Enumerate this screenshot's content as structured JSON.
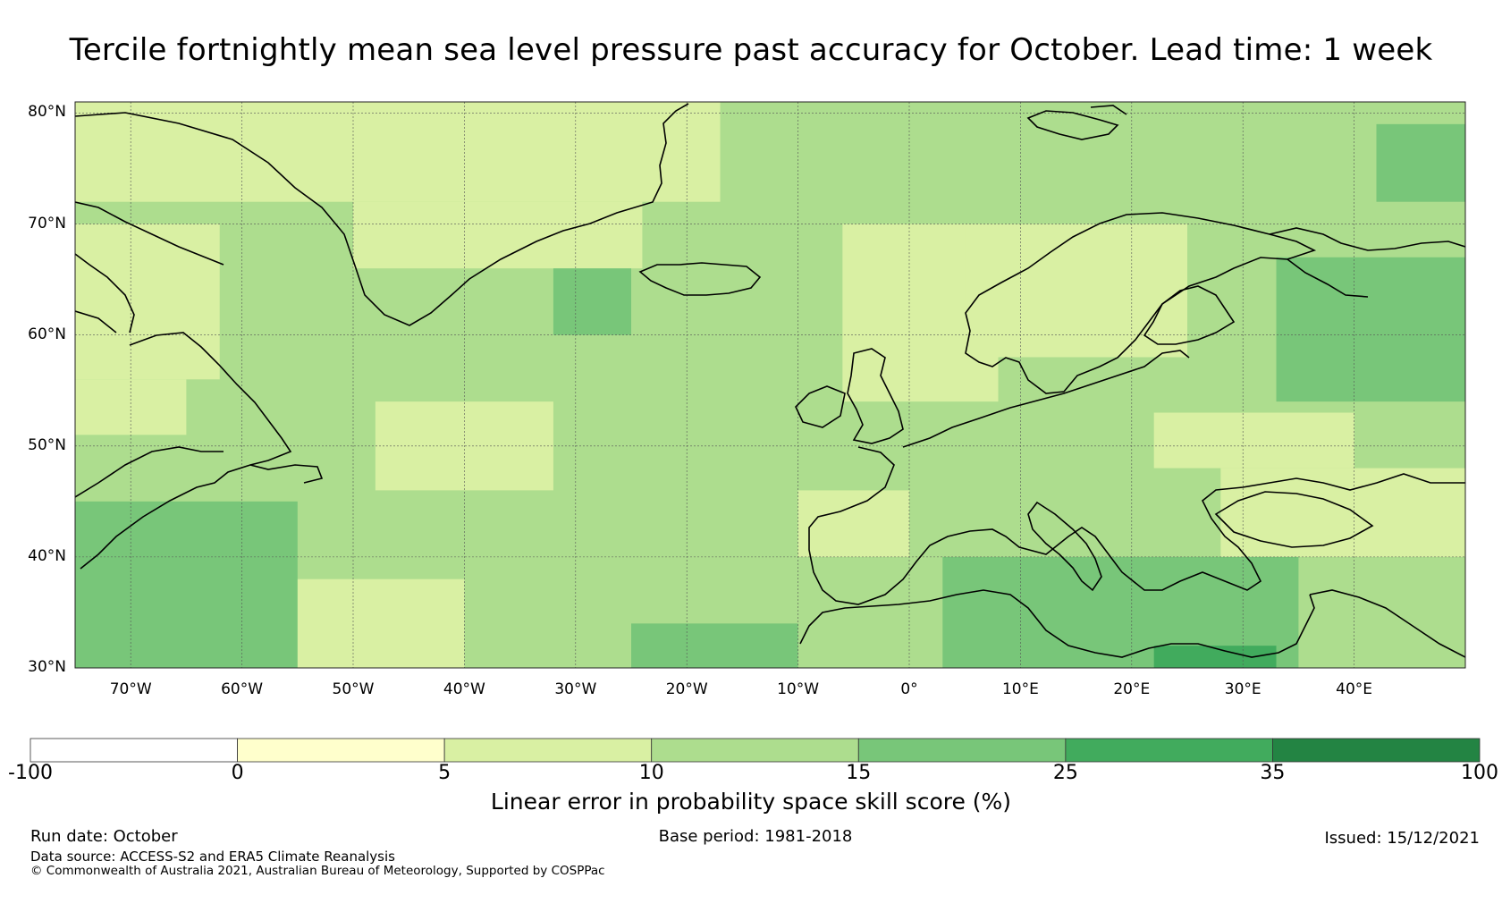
{
  "title": "Tercile fortnightly mean sea level pressure past accuracy for October. Lead time: 1 week",
  "map": {
    "lon_range": [
      -75,
      50
    ],
    "lat_range": [
      30,
      81
    ],
    "lat_ticks": [
      {
        "value": 30,
        "label": "30°N"
      },
      {
        "value": 40,
        "label": "40°N"
      },
      {
        "value": 50,
        "label": "50°N"
      },
      {
        "value": 60,
        "label": "60°N"
      },
      {
        "value": 70,
        "label": "70°N"
      },
      {
        "value": 80,
        "label": "80°N"
      }
    ],
    "lon_ticks": [
      {
        "value": -70,
        "label": "70°W"
      },
      {
        "value": -60,
        "label": "60°W"
      },
      {
        "value": -50,
        "label": "50°W"
      },
      {
        "value": -40,
        "label": "40°W"
      },
      {
        "value": -30,
        "label": "30°W"
      },
      {
        "value": -20,
        "label": "20°W"
      },
      {
        "value": -10,
        "label": "10°W"
      },
      {
        "value": 0,
        "label": "0°"
      },
      {
        "value": 10,
        "label": "10°E"
      },
      {
        "value": 20,
        "label": "20°E"
      },
      {
        "value": 30,
        "label": "30°E"
      },
      {
        "value": 40,
        "label": "40°E"
      }
    ],
    "skill_regions": [
      {
        "name": "background",
        "class": "10-15",
        "lon": [
          -75,
          50
        ],
        "lat": [
          30,
          81
        ]
      },
      {
        "name": "labrador-greenland-north",
        "class": "5-10",
        "lon": [
          -75,
          -17
        ],
        "lat": [
          72,
          81
        ]
      },
      {
        "name": "greenland-east-north",
        "class": "5-10",
        "lon": [
          -50,
          -24
        ],
        "lat": [
          66,
          72
        ]
      },
      {
        "name": "baffin-west",
        "class": "5-10",
        "lon": [
          -75,
          -62
        ],
        "lat": [
          56,
          70
        ]
      },
      {
        "name": "labrador-coast",
        "class": "5-10",
        "lon": [
          -75,
          -65
        ],
        "lat": [
          51,
          56
        ]
      },
      {
        "name": "mid-atlantic",
        "class": "5-10",
        "lon": [
          -48,
          -32
        ],
        "lat": [
          46,
          54
        ]
      },
      {
        "name": "azores",
        "class": "5-10",
        "lon": [
          -56,
          -40
        ],
        "lat": [
          30,
          38
        ]
      },
      {
        "name": "iberia-west",
        "class": "5-10",
        "lon": [
          -10,
          0
        ],
        "lat": [
          40,
          46
        ]
      },
      {
        "name": "north-sea",
        "class": "5-10",
        "lon": [
          -6,
          8
        ],
        "lat": [
          54,
          70
        ]
      },
      {
        "name": "scandinavia",
        "class": "5-10",
        "lon": [
          5,
          25
        ],
        "lat": [
          58,
          70
        ]
      },
      {
        "name": "black-sea",
        "class": "5-10",
        "lon": [
          28,
          50
        ],
        "lat": [
          40,
          48
        ]
      },
      {
        "name": "ukraine",
        "class": "5-10",
        "lon": [
          22,
          40
        ],
        "lat": [
          48,
          53
        ]
      },
      {
        "name": "arctic-east",
        "class": "15-25",
        "lon": [
          42,
          50
        ],
        "lat": [
          72,
          79
        ]
      },
      {
        "name": "east-atlantic",
        "class": "15-25",
        "lon": [
          -32,
          -25
        ],
        "lat": [
          60,
          66
        ]
      },
      {
        "name": "canada-east",
        "class": "15-25",
        "lon": [
          -75,
          -55
        ],
        "lat": [
          30,
          45
        ]
      },
      {
        "name": "russia-north",
        "class": "15-25",
        "lon": [
          33,
          50
        ],
        "lat": [
          54,
          67
        ]
      },
      {
        "name": "mediterranean",
        "class": "15-25",
        "lon": [
          3,
          35
        ],
        "lat": [
          30,
          40
        ]
      },
      {
        "name": "gibraltar-west",
        "class": "15-25",
        "lon": [
          -25,
          -10
        ],
        "lat": [
          30,
          34
        ]
      },
      {
        "name": "egypt",
        "class": "25-35",
        "lon": [
          22,
          33
        ],
        "lat": [
          30,
          32
        ]
      }
    ]
  },
  "colorbar": {
    "bins": [
      {
        "from": -100,
        "to": 0,
        "color": "#ffffff"
      },
      {
        "from": 0,
        "to": 5,
        "color": "#ffffcc"
      },
      {
        "from": 5,
        "to": 10,
        "color": "#d9f0a3"
      },
      {
        "from": 10,
        "to": 15,
        "color": "#addd8e"
      },
      {
        "from": 15,
        "to": 25,
        "color": "#78c679"
      },
      {
        "from": 25,
        "to": 35,
        "color": "#41ab5d"
      },
      {
        "from": 35,
        "to": 100,
        "color": "#238443"
      }
    ],
    "tick_labels": [
      "-100",
      "0",
      "5",
      "10",
      "15",
      "25",
      "35",
      "100"
    ],
    "label": "Linear error in probability space skill score (%)"
  },
  "footer": {
    "run_date": "Run date: October",
    "base_period": "Base period: 1981-2018",
    "issued": "Issued: 15/12/2021",
    "data_source": "Data source: ACCESS-S2 and ERA5 Climate Reanalysis",
    "copyright": "© Commonwealth of Australia 2021, Australian Bureau of Meteorology, Supported by COSPPac"
  }
}
